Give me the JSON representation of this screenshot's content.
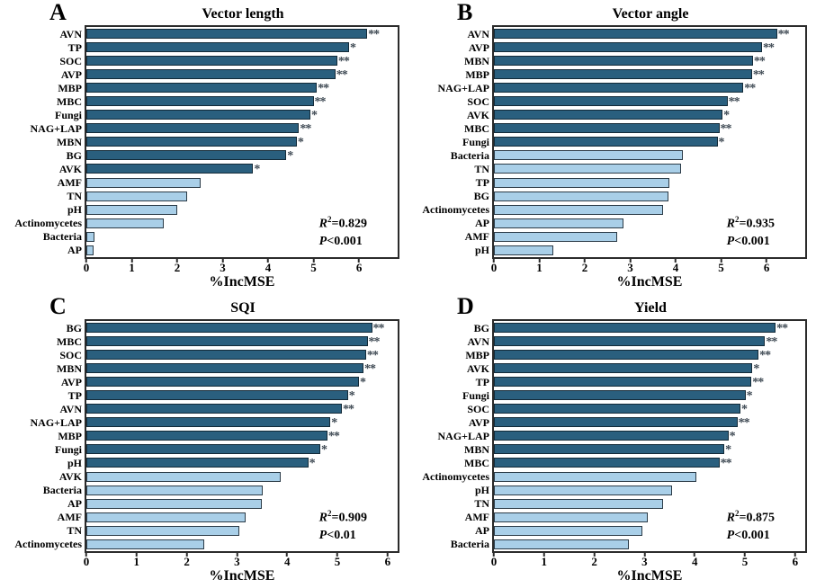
{
  "colors": {
    "dark_bar": "#2A5F7E",
    "light_bar": "#A9CFE8",
    "frame": "#2b2b2b",
    "significance": "#3d4852",
    "background": "#ffffff",
    "text": "#000000"
  },
  "chart_data": [
    {
      "type": "bar",
      "orientation": "horizontal",
      "panel": "A",
      "title": "Vector length",
      "xlabel": "%IncMSE",
      "xlim": [
        0,
        6.85
      ],
      "xticks": [
        0,
        1,
        2,
        3,
        4,
        5,
        6
      ],
      "categories": [
        "AVN",
        "TP",
        "SOC",
        "AVP",
        "MBP",
        "MBC",
        "Fungi",
        "NAG+LAP",
        "MBN",
        "BG",
        "AVK",
        "AMF",
        "TN",
        "pH",
        "Actinomycetes",
        "Bacteria",
        "AP"
      ],
      "values": [
        6.18,
        5.78,
        5.52,
        5.48,
        5.07,
        5.0,
        4.93,
        4.68,
        4.63,
        4.4,
        3.67,
        2.52,
        2.22,
        2.0,
        1.7,
        0.17,
        0.15
      ],
      "significance": [
        "**",
        "*",
        "**",
        "**",
        "**",
        "**",
        "*",
        "**",
        "*",
        "*",
        "*",
        "",
        "",
        "",
        "",
        "",
        ""
      ],
      "stats": {
        "r_label": "R",
        "r_sup": "2",
        "r_value": "=0.829",
        "p_label": "P",
        "p_value": "<0.001"
      }
    },
    {
      "type": "bar",
      "orientation": "horizontal",
      "panel": "B",
      "title": "Vector angle",
      "xlabel": "%IncMSE",
      "xlim": [
        0,
        6.85
      ],
      "xticks": [
        0,
        1,
        2,
        3,
        4,
        5,
        6
      ],
      "categories": [
        "AVN",
        "AVP",
        "MBN",
        "MBP",
        "NAG+LAP",
        "SOC",
        "AVK",
        "MBC",
        "Fungi",
        "Bacteria",
        "TN",
        "TP",
        "BG",
        "Actinomycetes",
        "AP",
        "AMF",
        "pH"
      ],
      "values": [
        6.23,
        5.9,
        5.7,
        5.68,
        5.49,
        5.14,
        5.03,
        4.96,
        4.92,
        4.15,
        4.11,
        3.86,
        3.84,
        3.73,
        2.85,
        2.71,
        1.3
      ],
      "significance": [
        "**",
        "**",
        "**",
        "**",
        "**",
        "**",
        "*",
        "**",
        "*",
        "",
        "",
        "",
        "",
        "",
        "",
        "",
        ""
      ],
      "stats": {
        "r_label": "R",
        "r_sup": "2",
        "r_value": "=0.935",
        "p_label": "P",
        "p_value": "<0.001"
      }
    },
    {
      "type": "bar",
      "orientation": "horizontal",
      "panel": "C",
      "title": "SQI",
      "xlabel": "%IncMSE",
      "xlim": [
        0,
        6.2
      ],
      "xticks": [
        0,
        1,
        2,
        3,
        4,
        5,
        6
      ],
      "categories": [
        "BG",
        "MBC",
        "SOC",
        "MBN",
        "AVP",
        "TP",
        "AVN",
        "NAG+LAP",
        "MBP",
        "Fungi",
        "pH",
        "AVK",
        "Bacteria",
        "AP",
        "AMF",
        "TN",
        "Actinomycetes"
      ],
      "values": [
        5.69,
        5.6,
        5.57,
        5.52,
        5.43,
        5.21,
        5.09,
        4.86,
        4.8,
        4.66,
        4.42,
        3.87,
        3.52,
        3.49,
        3.17,
        3.05,
        2.35
      ],
      "significance": [
        "**",
        "**",
        "**",
        "**",
        "*",
        "*",
        "**",
        "*",
        "**",
        "*",
        "*",
        "",
        "",
        "",
        "",
        "",
        ""
      ],
      "stats": {
        "r_label": "R",
        "r_sup": "2",
        "r_value": "=0.909",
        "p_label": "P",
        "p_value": "<0.01"
      }
    },
    {
      "type": "bar",
      "orientation": "horizontal",
      "panel": "D",
      "title": "Yield",
      "xlabel": "%IncMSE",
      "xlim": [
        0,
        6.2
      ],
      "xticks": [
        0,
        1,
        2,
        3,
        4,
        5,
        6
      ],
      "categories": [
        "BG",
        "AVN",
        "MBP",
        "AVK",
        "TP",
        "Fungi",
        "SOC",
        "AVP",
        "NAG+LAP",
        "MBN",
        "MBC",
        "Actinomycetes",
        "pH",
        "TN",
        "AMF",
        "AP",
        "Bacteria"
      ],
      "values": [
        5.61,
        5.4,
        5.27,
        5.15,
        5.13,
        5.01,
        4.91,
        4.85,
        4.67,
        4.59,
        4.49,
        4.04,
        3.54,
        3.36,
        3.07,
        2.95,
        2.69
      ],
      "significance": [
        "**",
        "**",
        "**",
        "*",
        "**",
        "*",
        "*",
        "**",
        "*",
        "*",
        "**",
        "",
        "",
        "",
        "",
        "",
        ""
      ],
      "stats": {
        "r_label": "R",
        "r_sup": "2",
        "r_value": "=0.875",
        "p_label": "P",
        "p_value": "<0.001"
      }
    }
  ]
}
